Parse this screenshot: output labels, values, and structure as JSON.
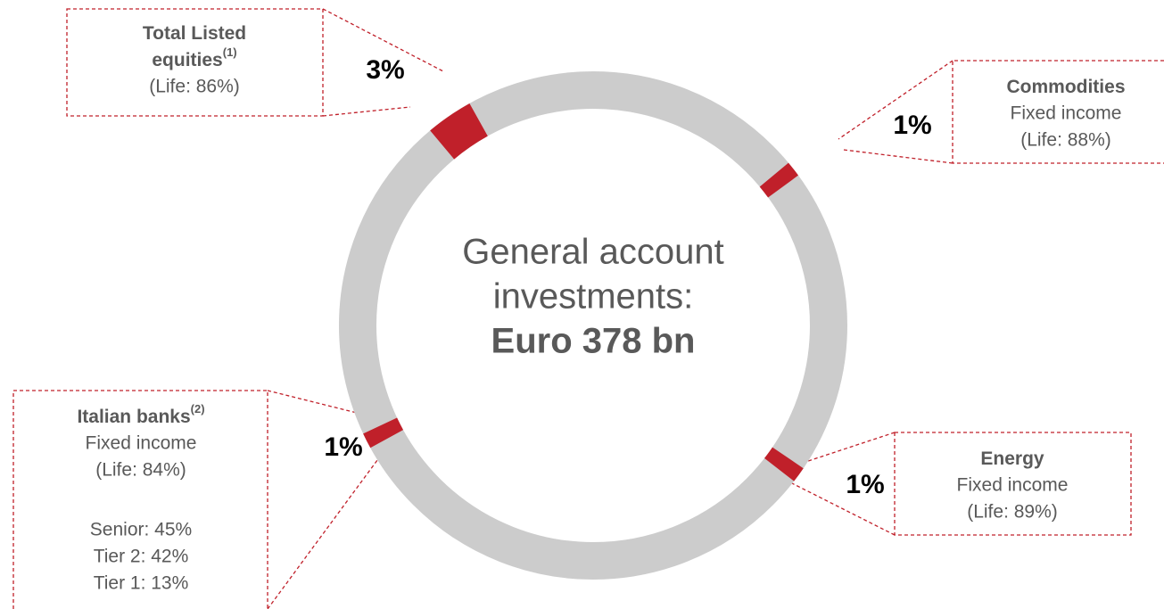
{
  "chart_data": {
    "type": "donut",
    "center_text": [
      "General account",
      "investments:"
    ],
    "center_value": "Euro 378 bn",
    "values": [
      3,
      1,
      1,
      1
    ],
    "value_labels": [
      "3%",
      "1%",
      "1%",
      "1%"
    ],
    "ring_color": "#cccccc",
    "color": "#c0202a",
    "segments": [
      {
        "title": [
          "Total Listed",
          "equities"
        ],
        "note": "(1)",
        "lines": [
          "(Life: 86%)"
        ]
      },
      {
        "title": [
          "Commodities"
        ],
        "lines": [
          "Fixed income",
          "(Life: 88%)"
        ]
      },
      {
        "title": [
          "Energy"
        ],
        "lines": [
          "Fixed income",
          "(Life: 89%)"
        ]
      },
      {
        "title": [
          "Italian banks"
        ],
        "note": "(2)",
        "lines": [
          "Fixed income",
          "(Life: 84%)",
          "",
          "Senior: 45%",
          "Tier 2: 42%",
          "Tier 1: 13%"
        ]
      }
    ]
  }
}
